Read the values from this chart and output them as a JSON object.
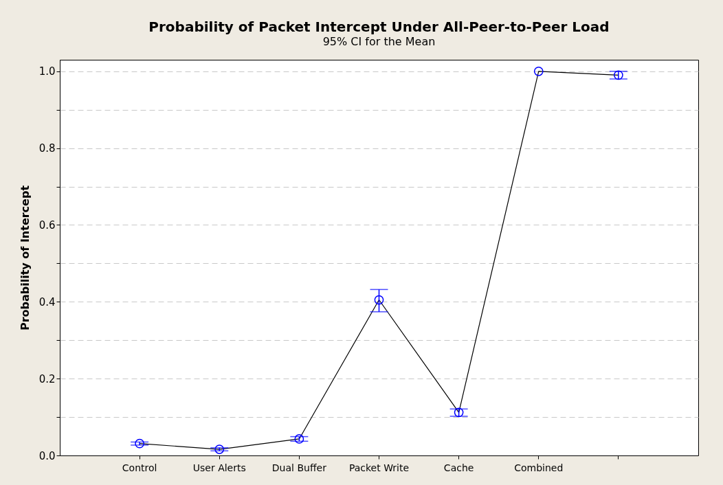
{
  "chart_data": {
    "type": "line",
    "title": "Probability of Packet Intercept Under All-Peer-to-Peer Load",
    "subtitle": "95% CI for the Mean",
    "ylabel": "Probability of Intercept",
    "categories": [
      "Control",
      "User Alerts",
      "Dual Buffer",
      "Packet Write",
      "Cache",
      "Combined",
      null
    ],
    "series": [
      {
        "color": "#0000ff",
        "values": [
          0.031,
          0.016,
          0.043,
          0.405,
          0.112,
          1.0,
          0.99
        ],
        "errors": [
          0.004,
          0.004,
          0.006,
          [
            0.374,
            0.432
          ],
          [
            0.102,
            0.121
          ],
          null,
          [
            0.98,
            1.0
          ]
        ]
      }
    ],
    "ylim": [
      0,
      1.03
    ],
    "yticks": [
      {
        "value": 0,
        "label": "0.0"
      },
      {
        "value": 0.1,
        "label": null
      },
      0.2,
      {
        "value": 0.3,
        "label": null
      },
      0.4,
      {
        "value": 0.5,
        "label": null
      },
      0.6,
      {
        "value": 0.7,
        "label": null
      },
      0.8,
      {
        "value": 0.9,
        "label": null
      },
      {
        "value": 1,
        "label": "1.0"
      }
    ],
    "grid": "y",
    "marker": "circle",
    "line_style": "solid"
  }
}
